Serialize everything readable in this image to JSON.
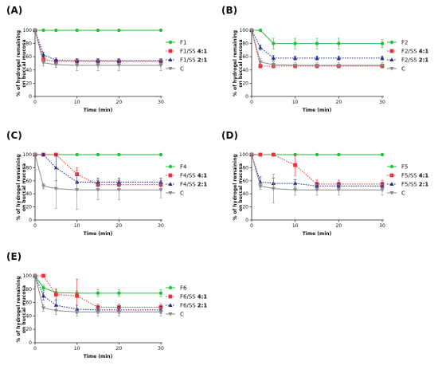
{
  "figure": {
    "colors": {
      "green": "#22c23a",
      "red": "#e8333c",
      "navy": "#1f2f8c",
      "gray": "#8a8a8a"
    }
  },
  "chart_data": [
    {
      "panel": "(A)",
      "type": "line",
      "xlabel": "Time (min)",
      "ylabel": [
        "% of hydrogel remaining",
        "on buccal mucosa"
      ],
      "xlim": [
        0,
        30
      ],
      "ylim": [
        0,
        100
      ],
      "xticks": [
        0,
        10,
        20,
        30
      ],
      "yticks": [
        0,
        20,
        40,
        60,
        80,
        100
      ],
      "legend_position": "right",
      "series": [
        {
          "name": "F1",
          "bold_suffix": "",
          "color": "#22c23a",
          "dash": "solid",
          "marker": "circle",
          "x": [
            0,
            2,
            5,
            10,
            15,
            20,
            30
          ],
          "y": [
            100,
            100,
            100,
            100,
            100,
            100,
            100
          ],
          "err": [
            0,
            0,
            0,
            0,
            0,
            0,
            0
          ]
        },
        {
          "name": "F1/SS",
          "bold_suffix": "4:1",
          "color": "#e8333c",
          "dash": "dotted",
          "marker": "square",
          "x": [
            0,
            2,
            5,
            10,
            15,
            20,
            30
          ],
          "y": [
            100,
            56,
            53,
            53,
            53,
            53,
            53
          ],
          "err": [
            0,
            4,
            3,
            3,
            3,
            3,
            3
          ]
        },
        {
          "name": "F1/SS",
          "bold_suffix": "2:1",
          "color": "#1f2f8c",
          "dash": "dotted",
          "marker": "triangle",
          "x": [
            0,
            2,
            5,
            10,
            15,
            20,
            30
          ],
          "y": [
            100,
            63,
            55,
            54,
            54,
            54,
            54
          ],
          "err": [
            0,
            4,
            3,
            3,
            3,
            3,
            3
          ]
        },
        {
          "name": "C",
          "bold_suffix": "",
          "color": "#8a8a8a",
          "dash": "solid",
          "marker": "triangle-down",
          "x": [
            0,
            2,
            5,
            10,
            15,
            20,
            30
          ],
          "y": [
            100,
            51,
            48,
            47,
            47,
            47,
            47
          ],
          "err": [
            0,
            5,
            4,
            8,
            8,
            8,
            8
          ]
        }
      ]
    },
    {
      "panel": "(B)",
      "type": "line",
      "xlabel": "Time (min)",
      "ylabel": [
        "% of hydrogel remaining",
        "on buccal mucosa"
      ],
      "xlim": [
        0,
        30
      ],
      "ylim": [
        0,
        100
      ],
      "xticks": [
        0,
        10,
        20,
        30
      ],
      "yticks": [
        0,
        20,
        40,
        60,
        80,
        100
      ],
      "legend_position": "right",
      "series": [
        {
          "name": "F2",
          "bold_suffix": "",
          "color": "#22c23a",
          "dash": "solid",
          "marker": "circle",
          "x": [
            0,
            2,
            5,
            10,
            15,
            20,
            30
          ],
          "y": [
            100,
            100,
            80,
            80,
            80,
            80,
            80
          ],
          "err": [
            0,
            0,
            8,
            8,
            8,
            8,
            6
          ]
        },
        {
          "name": "F2/SS",
          "bold_suffix": "4:1",
          "color": "#e8333c",
          "dash": "dotted",
          "marker": "square",
          "x": [
            0,
            2,
            5,
            10,
            15,
            20,
            30
          ],
          "y": [
            100,
            46,
            46,
            46,
            46,
            46,
            46
          ],
          "err": [
            0,
            3,
            3,
            3,
            3,
            3,
            3
          ]
        },
        {
          "name": "F2/SS",
          "bold_suffix": "2:1",
          "color": "#1f2f8c",
          "dash": "dotted",
          "marker": "triangle",
          "x": [
            0,
            2,
            5,
            10,
            15,
            20,
            30
          ],
          "y": [
            100,
            74,
            58,
            58,
            58,
            58,
            58
          ],
          "err": [
            0,
            4,
            4,
            3,
            3,
            3,
            3
          ]
        },
        {
          "name": "C",
          "bold_suffix": "",
          "color": "#8a8a8a",
          "dash": "solid",
          "marker": "triangle-down",
          "x": [
            0,
            2,
            5,
            10,
            15,
            20,
            30
          ],
          "y": [
            100,
            52,
            48,
            47,
            47,
            47,
            47
          ],
          "err": [
            0,
            5,
            4,
            4,
            4,
            4,
            4
          ]
        }
      ]
    },
    {
      "panel": "(C)",
      "type": "line",
      "xlabel": "Time (min)",
      "ylabel": [
        "% of hydrogel remaining",
        "on buccal mucosa"
      ],
      "xlim": [
        0,
        30
      ],
      "ylim": [
        0,
        100
      ],
      "xticks": [
        0,
        10,
        20,
        30
      ],
      "yticks": [
        0,
        20,
        40,
        60,
        80,
        100
      ],
      "legend_position": "right",
      "series": [
        {
          "name": "F4",
          "bold_suffix": "",
          "color": "#22c23a",
          "dash": "solid",
          "marker": "circle",
          "x": [
            0,
            2,
            5,
            10,
            15,
            20,
            30
          ],
          "y": [
            100,
            100,
            100,
            100,
            100,
            100,
            100
          ],
          "err": [
            0,
            0,
            0,
            0,
            0,
            0,
            0
          ]
        },
        {
          "name": "F4/SS",
          "bold_suffix": "4:1",
          "color": "#e8333c",
          "dash": "dotted",
          "marker": "square",
          "x": [
            0,
            2,
            5,
            10,
            15,
            20,
            30
          ],
          "y": [
            100,
            100,
            100,
            70,
            54,
            54,
            54
          ],
          "err": [
            0,
            0,
            0,
            10,
            6,
            6,
            6
          ]
        },
        {
          "name": "F4/SS",
          "bold_suffix": "2:1",
          "color": "#1f2f8c",
          "dash": "dotted",
          "marker": "triangle",
          "x": [
            0,
            2,
            5,
            10,
            15,
            20,
            30
          ],
          "y": [
            100,
            100,
            80,
            58,
            58,
            58,
            58
          ],
          "err": [
            0,
            0,
            20,
            10,
            6,
            6,
            6
          ]
        },
        {
          "name": "C",
          "bold_suffix": "",
          "color": "#8a8a8a",
          "dash": "solid",
          "marker": "triangle-down",
          "x": [
            0,
            2,
            5,
            10,
            15,
            20,
            30
          ],
          "y": [
            100,
            52,
            48,
            46,
            46,
            46,
            46
          ],
          "err": [
            0,
            4,
            30,
            30,
            15,
            15,
            12
          ]
        }
      ]
    },
    {
      "panel": "(D)",
      "type": "line",
      "xlabel": "Time (min)",
      "ylabel": [
        "% of hydrogel remaining",
        "on buccal mucosa"
      ],
      "xlim": [
        0,
        30
      ],
      "ylim": [
        0,
        100
      ],
      "xticks": [
        0,
        10,
        20,
        30
      ],
      "yticks": [
        0,
        20,
        40,
        60,
        80,
        100
      ],
      "legend_position": "right",
      "series": [
        {
          "name": "F5",
          "bold_suffix": "",
          "color": "#22c23a",
          "dash": "solid",
          "marker": "circle",
          "x": [
            0,
            2,
            5,
            10,
            15,
            20,
            30
          ],
          "y": [
            100,
            100,
            100,
            100,
            100,
            100,
            100
          ],
          "err": [
            0,
            0,
            0,
            0,
            0,
            0,
            0
          ]
        },
        {
          "name": "F5/SS",
          "bold_suffix": "4:1",
          "color": "#e8333c",
          "dash": "dotted",
          "marker": "square",
          "x": [
            0,
            2,
            5,
            10,
            15,
            20,
            30
          ],
          "y": [
            100,
            100,
            100,
            84,
            55,
            55,
            55
          ],
          "err": [
            0,
            0,
            0,
            16,
            6,
            6,
            6
          ]
        },
        {
          "name": "F5/SS",
          "bold_suffix": "2:1",
          "color": "#1f2f8c",
          "dash": "dotted",
          "marker": "triangle",
          "x": [
            0,
            2,
            5,
            10,
            15,
            20,
            30
          ],
          "y": [
            100,
            58,
            56,
            56,
            52,
            52,
            52
          ],
          "err": [
            0,
            8,
            8,
            6,
            5,
            5,
            5
          ]
        },
        {
          "name": "C",
          "bold_suffix": "",
          "color": "#8a8a8a",
          "dash": "solid",
          "marker": "triangle-down",
          "x": [
            0,
            2,
            5,
            10,
            15,
            20,
            30
          ],
          "y": [
            100,
            52,
            48,
            46,
            46,
            46,
            46
          ],
          "err": [
            0,
            5,
            22,
            8,
            8,
            8,
            8
          ]
        }
      ]
    },
    {
      "panel": "(E)",
      "type": "line",
      "xlabel": "Time (min)",
      "ylabel": [
        "% of hydrogel remaining",
        "on buccal mucosa"
      ],
      "xlim": [
        0,
        30
      ],
      "ylim": [
        0,
        100
      ],
      "xticks": [
        0,
        10,
        20,
        30
      ],
      "yticks": [
        0,
        20,
        40,
        60,
        80,
        100
      ],
      "legend_position": "right",
      "series": [
        {
          "name": "F6",
          "bold_suffix": "",
          "color": "#22c23a",
          "dash": "solid",
          "marker": "circle",
          "x": [
            0,
            2,
            5,
            10,
            15,
            20,
            30
          ],
          "y": [
            100,
            82,
            75,
            74,
            74,
            74,
            74
          ],
          "err": [
            0,
            4,
            4,
            4,
            5,
            5,
            5
          ]
        },
        {
          "name": "F6/SS",
          "bold_suffix": "4:1",
          "color": "#e8333c",
          "dash": "dotted",
          "marker": "square",
          "x": [
            0,
            2,
            5,
            10,
            15,
            20,
            30
          ],
          "y": [
            100,
            100,
            72,
            70,
            53,
            53,
            53
          ],
          "err": [
            0,
            0,
            8,
            25,
            5,
            5,
            5
          ]
        },
        {
          "name": "F6/SS",
          "bold_suffix": "2:1",
          "color": "#1f2f8c",
          "dash": "dotted",
          "marker": "triangle",
          "x": [
            0,
            2,
            5,
            10,
            15,
            20,
            30
          ],
          "y": [
            100,
            70,
            56,
            50,
            49,
            49,
            49
          ],
          "err": [
            0,
            6,
            8,
            6,
            5,
            5,
            5
          ]
        },
        {
          "name": "C",
          "bold_suffix": "",
          "color": "#8a8a8a",
          "dash": "solid",
          "marker": "triangle-down",
          "x": [
            0,
            2,
            5,
            10,
            15,
            20,
            30
          ],
          "y": [
            100,
            52,
            48,
            46,
            46,
            46,
            46
          ],
          "err": [
            0,
            5,
            6,
            6,
            6,
            6,
            6
          ]
        }
      ]
    }
  ]
}
